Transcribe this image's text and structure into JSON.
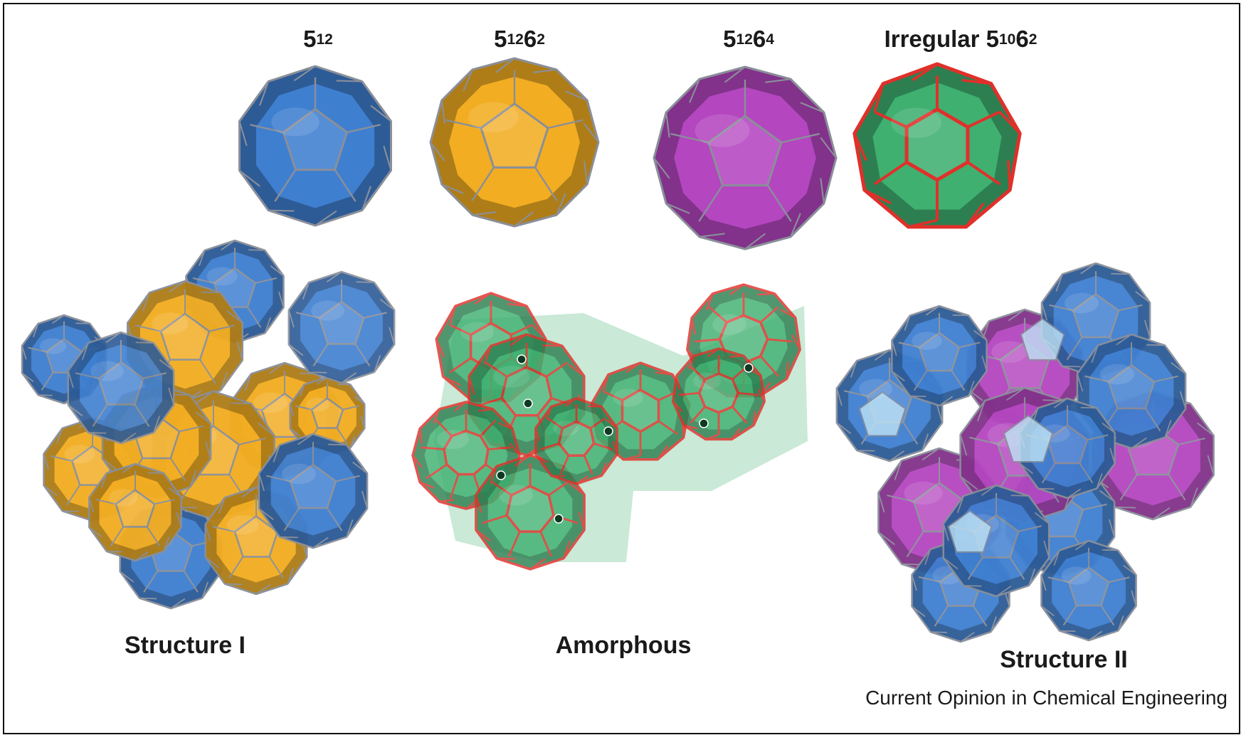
{
  "cages": [
    {
      "base": "5",
      "exp1": "12",
      "mid": "",
      "exp2": "",
      "prefix": "",
      "color": "#3f7fd0",
      "edge": "#8a8f99"
    },
    {
      "base": "5",
      "exp1": "12",
      "mid": "6",
      "exp2": "2",
      "prefix": "",
      "color": "#f2ad22",
      "edge": "#8a8f99"
    },
    {
      "base": "5",
      "exp1": "12",
      "mid": "6",
      "exp2": "4",
      "prefix": "",
      "color": "#b446c0",
      "edge": "#8a8f99"
    },
    {
      "base": "5",
      "exp1": "10",
      "mid": "6",
      "exp2": "2",
      "prefix": "Irregular ",
      "color": "#3fb070",
      "edge": "#e0302a"
    }
  ],
  "structures": {
    "structure_i": "Structure I",
    "amorphous": "Amorphous",
    "structure_ii": "Structure II"
  },
  "credit": "Current Opinion in Chemical Engineering",
  "colors": {
    "blue": "#3f7fd0",
    "orange": "#f2ad22",
    "magenta": "#b446c0",
    "green": "#3fb070",
    "red_edge": "#e0302a",
    "grey_edge": "#8a8f99"
  }
}
